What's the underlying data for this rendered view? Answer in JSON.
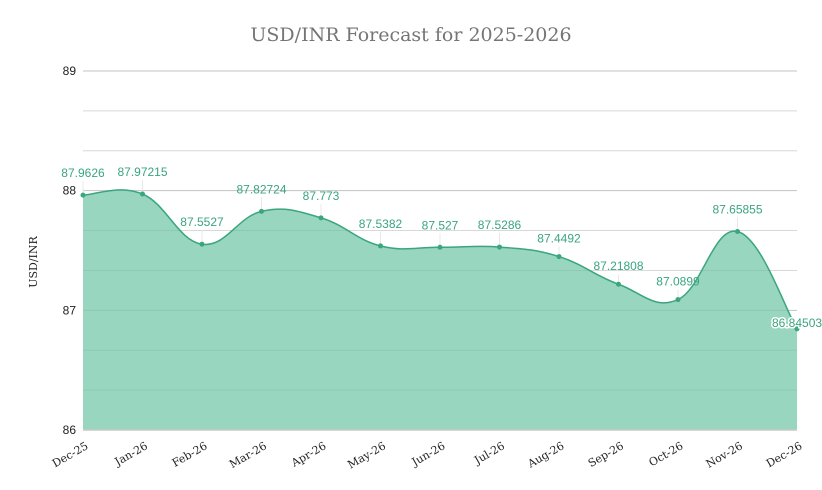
{
  "chart": {
    "title": "USD/INR Forecast for 2025-2026",
    "ylabel": "USD/INR",
    "colors": {
      "fill": "#98d6c0",
      "line": "#3aa57f",
      "label": "#3aa57f",
      "grid_major": "#d0d0d0",
      "grid_minor": "#e6e6e6"
    }
  },
  "chart_data": {
    "type": "area",
    "title": "USD/INR Forecast for 2025-2026",
    "xlabel": "",
    "ylabel": "USD/INR",
    "ylim": [
      86,
      89
    ],
    "yticks": [
      86,
      87,
      88,
      89
    ],
    "grid": true,
    "legend": "none",
    "categories": [
      "Dec-25",
      "Jan-26",
      "Feb-26",
      "Mar-26",
      "Apr-26",
      "May-26",
      "Jun-26",
      "Jul-26",
      "Aug-26",
      "Sep-26",
      "Oct-26",
      "Nov-26",
      "Dec-26"
    ],
    "series": [
      {
        "name": "USD/INR",
        "values": [
          87.9626,
          87.97215,
          87.5527,
          87.82724,
          87.773,
          87.5382,
          87.527,
          87.5286,
          87.4492,
          87.21808,
          87.0899,
          87.65855,
          86.84503
        ]
      }
    ],
    "data_labels": [
      "87.9626",
      "87.97215",
      "87.5527",
      "87.82724",
      "87.773",
      "87.5382",
      "87.527",
      "87.5286",
      "87.4492",
      "87.21808",
      "87.0899",
      "87.65855",
      "86.84503"
    ]
  }
}
